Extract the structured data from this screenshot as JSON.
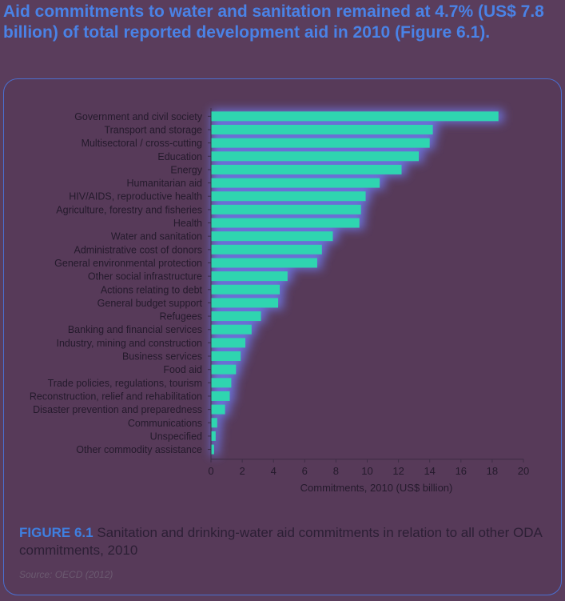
{
  "heading": "Aid commitments to water and sanitation remained at 4.7% (US$ 7.8 billion) of total reported development aid in 2010 (Figure 6.1).",
  "caption": {
    "label": "FIGURE 6.1",
    "text": " Sanitation and drinking-water aid commitments in relation to all other ODA commitments, 2010"
  },
  "source": "Source: OECD (2012)",
  "colors": {
    "bar": "#2fd5b0",
    "bar_glow": "#6f7cf2",
    "axis_text": "#241a2c",
    "axis_line": "#3c2c44"
  },
  "chart_data": {
    "type": "bar",
    "orientation": "horizontal",
    "title": "",
    "xlabel": "Commitments, 2010 (US$ billion)",
    "ylabel": "",
    "xlim": [
      0,
      20
    ],
    "xticks": [
      0,
      2,
      4,
      6,
      8,
      10,
      12,
      14,
      16,
      18,
      20
    ],
    "grid": false,
    "categories": [
      "Government and civil society",
      "Transport and storage",
      "Multisectoral / cross-cutting",
      "Education",
      "Energy",
      "Humanitarian aid",
      "HIV/AIDS, reproductive health",
      "Agriculture, forestry and fisheries",
      "Health",
      "Water and sanitation",
      "Administrative cost of donors",
      "General environmental protection",
      "Other social infrastructure",
      "Actions relating to debt",
      "General budget support",
      "Refugees",
      "Banking and financial services",
      "Industry, mining and construction",
      "Business services",
      "Food aid",
      "Trade policies, regulations, tourism",
      "Reconstruction, relief and rehabilitation",
      "Disaster prevention and preparedness",
      "Communications",
      "Unspecified",
      "Other commodity assistance"
    ],
    "values": [
      18.4,
      14.2,
      14.0,
      13.3,
      12.2,
      10.8,
      9.9,
      9.6,
      9.5,
      7.8,
      7.1,
      6.8,
      4.9,
      4.4,
      4.3,
      3.2,
      2.6,
      2.2,
      1.9,
      1.6,
      1.3,
      1.2,
      0.9,
      0.4,
      0.3,
      0.2
    ]
  }
}
